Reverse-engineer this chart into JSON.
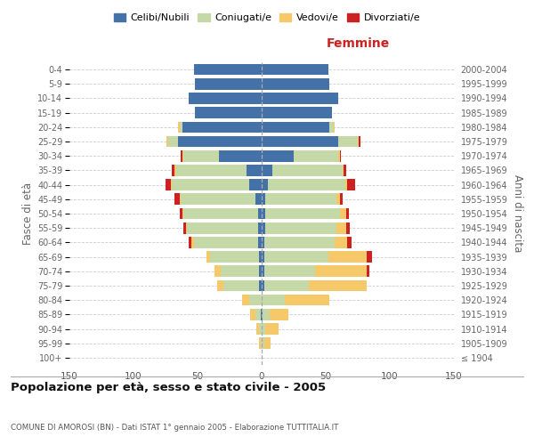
{
  "age_groups": [
    "100+",
    "95-99",
    "90-94",
    "85-89",
    "80-84",
    "75-79",
    "70-74",
    "65-69",
    "60-64",
    "55-59",
    "50-54",
    "45-49",
    "40-44",
    "35-39",
    "30-34",
    "25-29",
    "20-24",
    "15-19",
    "10-14",
    "5-9",
    "0-4"
  ],
  "birth_years": [
    "≤ 1904",
    "1905-1909",
    "1910-1914",
    "1915-1919",
    "1920-1924",
    "1925-1929",
    "1930-1934",
    "1935-1939",
    "1940-1944",
    "1945-1949",
    "1950-1954",
    "1955-1959",
    "1960-1964",
    "1965-1969",
    "1970-1974",
    "1975-1979",
    "1980-1984",
    "1985-1989",
    "1990-1994",
    "1995-1999",
    "2000-2004"
  ],
  "m_cel": [
    0,
    0,
    0,
    1,
    0,
    2,
    2,
    2,
    3,
    3,
    3,
    5,
    10,
    12,
    33,
    65,
    62,
    52,
    57,
    52,
    53
  ],
  "m_con": [
    0,
    1,
    2,
    4,
    10,
    28,
    30,
    38,
    50,
    55,
    58,
    58,
    60,
    55,
    28,
    8,
    2,
    0,
    0,
    0,
    0
  ],
  "m_ved": [
    0,
    1,
    2,
    4,
    5,
    5,
    5,
    3,
    2,
    1,
    1,
    1,
    1,
    1,
    1,
    1,
    1,
    0,
    0,
    0,
    0
  ],
  "m_div": [
    0,
    0,
    0,
    0,
    0,
    0,
    0,
    0,
    2,
    2,
    2,
    4,
    4,
    2,
    1,
    0,
    0,
    0,
    0,
    0,
    0
  ],
  "f_nub": [
    0,
    0,
    0,
    1,
    0,
    2,
    2,
    2,
    2,
    3,
    3,
    3,
    5,
    8,
    25,
    60,
    53,
    55,
    60,
    53,
    52
  ],
  "f_con": [
    0,
    2,
    3,
    5,
    18,
    35,
    40,
    50,
    55,
    55,
    58,
    55,
    60,
    55,
    35,
    15,
    3,
    0,
    0,
    0,
    0
  ],
  "f_ved": [
    0,
    5,
    10,
    15,
    35,
    45,
    40,
    30,
    10,
    8,
    5,
    3,
    2,
    1,
    1,
    1,
    1,
    0,
    0,
    0,
    0
  ],
  "f_div": [
    0,
    0,
    0,
    0,
    0,
    0,
    2,
    4,
    3,
    3,
    2,
    2,
    6,
    2,
    1,
    1,
    0,
    0,
    0,
    0,
    0
  ],
  "colors": {
    "celibi": "#4472a8",
    "coniugati": "#c5d8a8",
    "vedovi": "#f5c96a",
    "divorziati": "#cc2222"
  },
  "title": "Popolazione per età, sesso e stato civile - 2005",
  "subtitle": "COMUNE DI AMOROSI (BN) - Dati ISTAT 1° gennaio 2005 - Elaborazione TUTTITALIA.IT",
  "xlabel_right": "Femmine",
  "ylabel_left": "Fasce di età",
  "ylabel_right": "Anni di nascita",
  "xlim": 150,
  "bg_color": "#ffffff",
  "grid_color": "#cccccc",
  "legend_labels": [
    "Celibi/Nubili",
    "Coniugati/e",
    "Vedovi/e",
    "Divorziati/e"
  ]
}
